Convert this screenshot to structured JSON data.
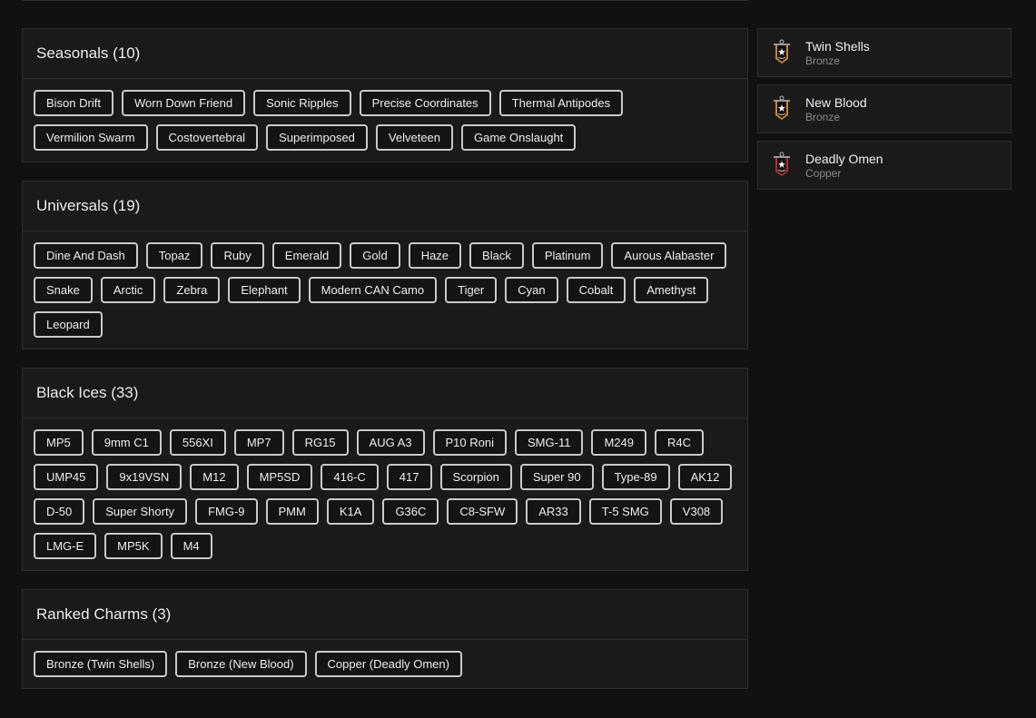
{
  "sections": [
    {
      "title": "Seasonals (10)",
      "tags": [
        "Bison Drift",
        "Worn Down Friend",
        "Sonic Ripples",
        "Precise Coordinates",
        "Thermal Antipodes",
        "Vermilion Swarm",
        "Costovertebral",
        "Superimposed",
        "Velveteen",
        "Game Onslaught"
      ]
    },
    {
      "title": "Universals (19)",
      "tags": [
        "Dine And Dash",
        "Topaz",
        "Ruby",
        "Emerald",
        "Gold",
        "Haze",
        "Black",
        "Platinum",
        "Aurous Alabaster",
        "Snake",
        "Arctic",
        "Zebra",
        "Elephant",
        "Modern CAN Camo",
        "Tiger",
        "Cyan",
        "Cobalt",
        "Amethyst",
        "Leopard"
      ]
    },
    {
      "title": "Black Ices (33)",
      "tags": [
        "MP5",
        "9mm C1",
        "556XI",
        "MP7",
        "RG15",
        "AUG A3",
        "P10 Roni",
        "SMG-11",
        "M249",
        "R4C",
        "UMP45",
        "9x19VSN",
        "M12",
        "MP5SD",
        "416-C",
        "417",
        "Scorpion",
        "Super 90",
        "Type-89",
        "AK12",
        "D-50",
        "Super Shorty",
        "FMG-9",
        "PMM",
        "K1A",
        "G36C",
        "C8-SFW",
        "AR33",
        "T-5 SMG",
        "V308",
        "LMG-E",
        "MP5K",
        "M4"
      ]
    },
    {
      "title": "Ranked Charms (3)",
      "tags": [
        "Bronze (Twin Shells)",
        "Bronze (New Blood)",
        "Copper (Deadly Omen)"
      ]
    }
  ],
  "charms": [
    {
      "name": "Twin Shells",
      "tier": "Bronze",
      "color": "#c98a2a"
    },
    {
      "name": "New Blood",
      "tier": "Bronze",
      "color": "#c98a2a"
    },
    {
      "name": "Deadly Omen",
      "tier": "Copper",
      "color": "#c0282a"
    }
  ]
}
